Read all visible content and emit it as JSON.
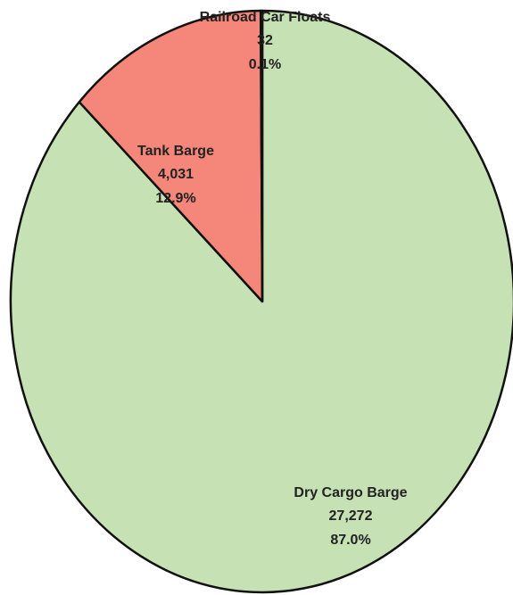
{
  "chart_data": {
    "type": "pie",
    "categories": [
      "Dry Cargo Barge",
      "Tank Barge",
      "Railroad Car Floats"
    ],
    "values": [
      27272,
      4031,
      32
    ],
    "value_labels": [
      "27,272",
      "4,031",
      "32"
    ],
    "percents": [
      87.0,
      12.9,
      0.1
    ],
    "percent_labels": [
      "87.0%",
      "12.9%",
      "0.1%"
    ],
    "colors": [
      "#c6e2b5",
      "#f4867a",
      "#1f2e9e"
    ]
  }
}
